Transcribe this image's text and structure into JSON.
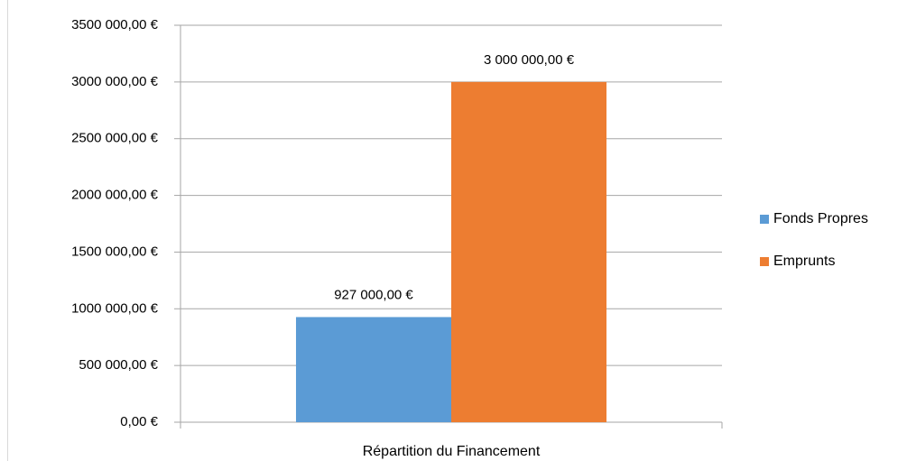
{
  "chart_data": {
    "type": "bar",
    "categories": [
      "Répartition du Financement"
    ],
    "series": [
      {
        "name": "Fonds Propres",
        "color": "#5b9bd5",
        "values": [
          927000
        ],
        "value_labels": [
          "927 000,00 €"
        ]
      },
      {
        "name": "Emprunts",
        "color": "#ed7d31",
        "values": [
          3000000
        ],
        "value_labels": [
          "3 000 000,00 €"
        ]
      }
    ],
    "ylim": [
      0,
      3500000
    ],
    "yticks": [
      {
        "value": 0,
        "label": "0,00 €"
      },
      {
        "value": 500000,
        "label": "500 000,00 €"
      },
      {
        "value": 1000000,
        "label": "1000 000,00 €"
      },
      {
        "value": 1500000,
        "label": "1500 000,00 €"
      },
      {
        "value": 2000000,
        "label": "2000 000,00 €"
      },
      {
        "value": 2500000,
        "label": "2500 000,00 €"
      },
      {
        "value": 3000000,
        "label": "3000 000,00 €"
      },
      {
        "value": 3500000,
        "label": "3500 000,00 €"
      }
    ],
    "grid": true,
    "legend": "right"
  }
}
